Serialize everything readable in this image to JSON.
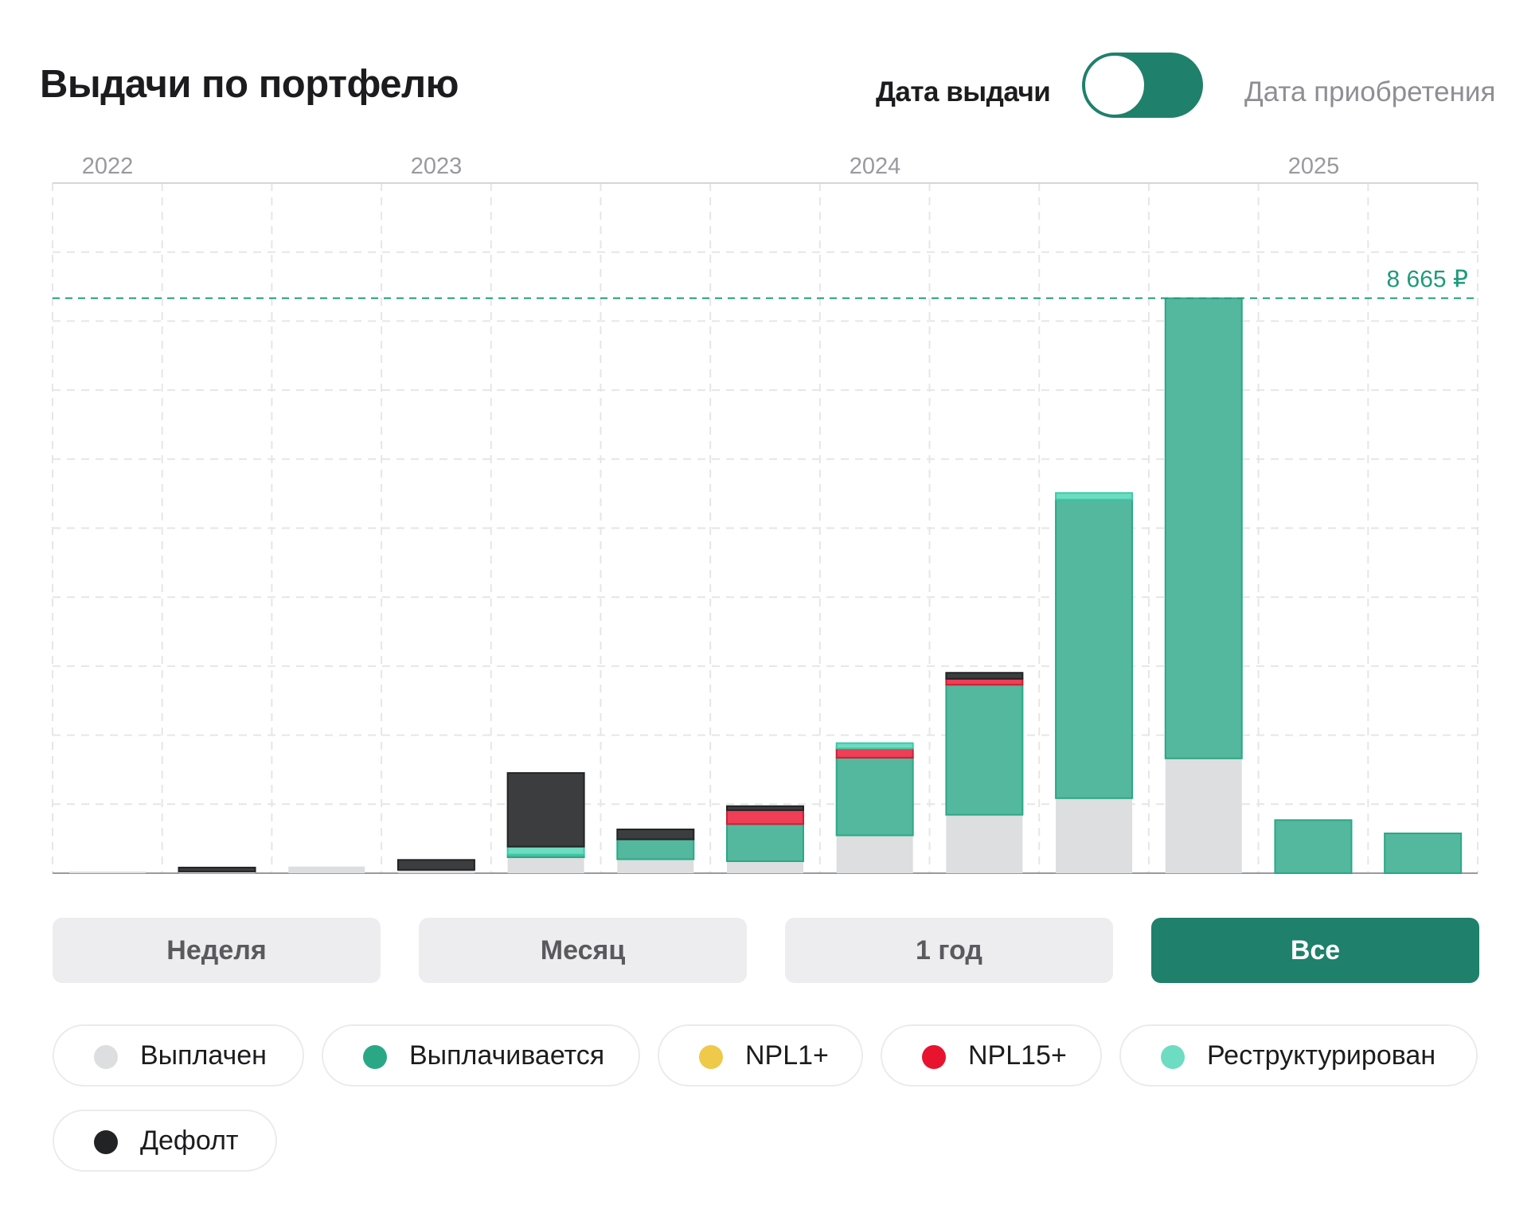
{
  "header": {
    "title": "Выдачи по портфелю",
    "toggle_left_label": "Дата выдачи",
    "toggle_right_label": "Дата приобретения"
  },
  "colors": {
    "paid": "#dcdee0",
    "paying": "#54b89e",
    "npl1": "#eec94a",
    "npl15": "#ef3e56",
    "restructured": "#6edcc2",
    "default": "#3c3d3f",
    "accent": "#1f806b"
  },
  "chart_data": {
    "type": "bar",
    "stacked": true,
    "x_axis_labels": [
      "2022",
      "2023",
      "2024",
      "2025"
    ],
    "max_value_label": "8 665 ₽",
    "max_value": 8665,
    "ylim": [
      0,
      10400
    ],
    "grid": true,
    "categories": [
      "",
      "",
      "",
      "",
      "",
      "",
      "",
      "",
      "",
      "",
      "",
      "",
      ""
    ],
    "series": [
      {
        "name": "Выплачен",
        "key": "paid",
        "values": [
          25,
          25,
          100,
          50,
          240,
          210,
          180,
          570,
          880,
          1130,
          1730,
          0,
          0
        ]
      },
      {
        "name": "Выплачивается",
        "key": "paying",
        "values": [
          0,
          0,
          0,
          0,
          40,
          300,
          560,
          1170,
          1960,
          4500,
          6935,
          800,
          600
        ]
      },
      {
        "name": "NPL1+",
        "key": "npl1",
        "values": [
          0,
          0,
          0,
          0,
          0,
          0,
          0,
          0,
          0,
          0,
          0,
          0,
          0
        ]
      },
      {
        "name": "NPL15+",
        "key": "npl15",
        "values": [
          0,
          0,
          0,
          0,
          0,
          0,
          210,
          140,
          90,
          0,
          0,
          0,
          0
        ]
      },
      {
        "name": "Реструктурирован",
        "key": "restructured",
        "values": [
          0,
          0,
          0,
          0,
          120,
          0,
          0,
          80,
          0,
          100,
          0,
          0,
          0
        ]
      },
      {
        "name": "Дефолт",
        "key": "default",
        "values": [
          0,
          60,
          0,
          150,
          1110,
          150,
          60,
          0,
          90,
          0,
          0,
          0,
          0
        ]
      }
    ]
  },
  "period_buttons": [
    {
      "label": "Неделя",
      "active": false
    },
    {
      "label": "Месяц",
      "active": false
    },
    {
      "label": "1 год",
      "active": false
    },
    {
      "label": "Все",
      "active": true
    }
  ],
  "legend": [
    {
      "label": "Выплачен",
      "color": "#dcdee0"
    },
    {
      "label": "Выплачивается",
      "color": "#2aa886"
    },
    {
      "label": "NPL1+",
      "color": "#eec94a"
    },
    {
      "label": "NPL15+",
      "color": "#e8142f"
    },
    {
      "label": "Реструктурирован",
      "color": "#6edcc2"
    },
    {
      "label": "Дефолт",
      "color": "#222324"
    }
  ]
}
